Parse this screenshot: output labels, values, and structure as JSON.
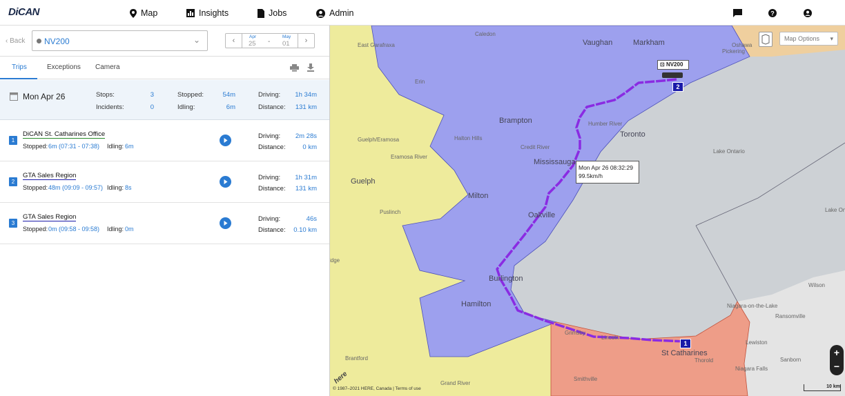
{
  "header": {
    "logo": "DiCAN",
    "nav": [
      "Map",
      "Insights",
      "Jobs",
      "Admin"
    ]
  },
  "sidebar": {
    "back": "Back",
    "vehicle": "NV200",
    "date_from_month": "Apr",
    "date_from_day": "25",
    "date_sep": "-",
    "date_to_month": "May",
    "date_to_day": "01",
    "tabs": [
      "Trips",
      "Exceptions",
      "Camera"
    ],
    "summary": {
      "date": "Mon Apr 26",
      "stops_label": "Stops:",
      "stops": "3",
      "incidents_label": "Incidents:",
      "incidents": "0",
      "stopped_label": "Stopped:",
      "stopped": "54m",
      "idling_label": "Idling:",
      "idling": "6m",
      "driving_label": "Driving:",
      "driving": "1h 34m",
      "distance_label": "Distance:",
      "distance": "131 km"
    },
    "trips": [
      {
        "number": "1",
        "place": "DiCAN St. Catharines Office",
        "stopped_label": "Stopped:",
        "stopped": "6m (07:31 - 07:38)",
        "idling_label": "Idling:",
        "idling": "6m",
        "driving_label": "Driving:",
        "driving": "2m 28s",
        "distance_label": "Distance:",
        "distance": "0 km"
      },
      {
        "number": "2",
        "place": "GTA Sales Region",
        "stopped_label": "Stopped:",
        "stopped": "48m (09:09 - 09:57)",
        "idling_label": "Idling:",
        "idling": "8s",
        "driving_label": "Driving:",
        "driving": "1h 31m",
        "distance_label": "Distance:",
        "distance": "131 km"
      },
      {
        "number": "3",
        "place": "GTA Sales Region",
        "stopped_label": "Stopped:",
        "stopped": "0m (09:58 - 09:58)",
        "idling_label": "Idling:",
        "idling": "0m",
        "driving_label": "Driving:",
        "driving": "46s",
        "distance_label": "Distance:",
        "distance": "0.10 km"
      }
    ]
  },
  "map": {
    "options": "Map Options",
    "vehicle_label": "NV200",
    "tooltip_time": "Mon Apr 26 08:32:29",
    "tooltip_speed": "99.5km/h",
    "marker_start": "1",
    "marker_end": "2",
    "zoom_in": "+",
    "zoom_out": "−",
    "scale": "10 km",
    "attribution": "© 1987–2021 HERE, Canada | Terms of use",
    "here": "here",
    "labels": [
      "Caledon",
      "Vaughan",
      "Markham",
      "Pickering",
      "Oshawa",
      "East Garafraxa",
      "Erin",
      "Brampton",
      "Toronto",
      "Halton Hills",
      "Credit River",
      "Humber River",
      "Guelph/Eramosa",
      "Eramosa River",
      "Guelph",
      "Mississauga",
      "Lake Ontario",
      "Milton",
      "Oakville",
      "Puslinch",
      "Cambridge",
      "Burlington",
      "Hamilton",
      "Lake Ontario",
      "Wilson",
      "Niagara-on-the-Lake",
      "Ransomville",
      "Grimsby",
      "Lincoln",
      "Lewiston",
      "St Catharines",
      "Thorold",
      "Sanborn",
      "Niagara Falls",
      "Smithville",
      "Brantford",
      "Grand River"
    ]
  }
}
